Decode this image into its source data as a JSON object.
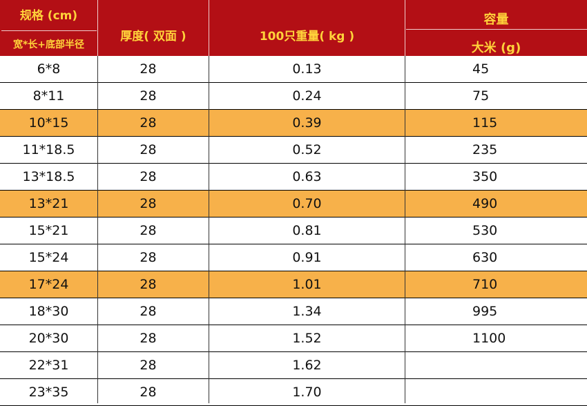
{
  "header": {
    "spec_title": "规格 (cm)",
    "spec_sub": "宽*长+底部半径",
    "thickness": "厚度( 双面 )",
    "weight": "100只重量( kg )",
    "capacity": "容量",
    "rice": "大米 (g)"
  },
  "rows": [
    {
      "spec": "6*8",
      "thickness": "28",
      "weight": "0.13",
      "rice": "45",
      "highlight": false
    },
    {
      "spec": "8*11",
      "thickness": "28",
      "weight": "0.24",
      "rice": "75",
      "highlight": false
    },
    {
      "spec": "10*15",
      "thickness": "28",
      "weight": "0.39",
      "rice": "115",
      "highlight": true
    },
    {
      "spec": "11*18.5",
      "thickness": "28",
      "weight": "0.52",
      "rice": "235",
      "highlight": false
    },
    {
      "spec": "13*18.5",
      "thickness": "28",
      "weight": "0.63",
      "rice": "350",
      "highlight": false
    },
    {
      "spec": "13*21",
      "thickness": "28",
      "weight": "0.70",
      "rice": "490",
      "highlight": true
    },
    {
      "spec": "15*21",
      "thickness": "28",
      "weight": "0.81",
      "rice": "530",
      "highlight": false
    },
    {
      "spec": "15*24",
      "thickness": "28",
      "weight": "0.91",
      "rice": "630",
      "highlight": false
    },
    {
      "spec": "17*24",
      "thickness": "28",
      "weight": "1.01",
      "rice": "710",
      "highlight": true
    },
    {
      "spec": "18*30",
      "thickness": "28",
      "weight": "1.34",
      "rice": "995",
      "highlight": false
    },
    {
      "spec": "20*30",
      "thickness": "28",
      "weight": "1.52",
      "rice": "1100",
      "highlight": false
    },
    {
      "spec": "22*31",
      "thickness": "28",
      "weight": "1.62",
      "rice": "",
      "highlight": false
    },
    {
      "spec": "23*35",
      "thickness": "28",
      "weight": "1.70",
      "rice": "",
      "highlight": false
    }
  ],
  "colors": {
    "header_bg": "#b30f15",
    "header_text": "#ffd23a",
    "highlight_row": "#f7b14a"
  }
}
